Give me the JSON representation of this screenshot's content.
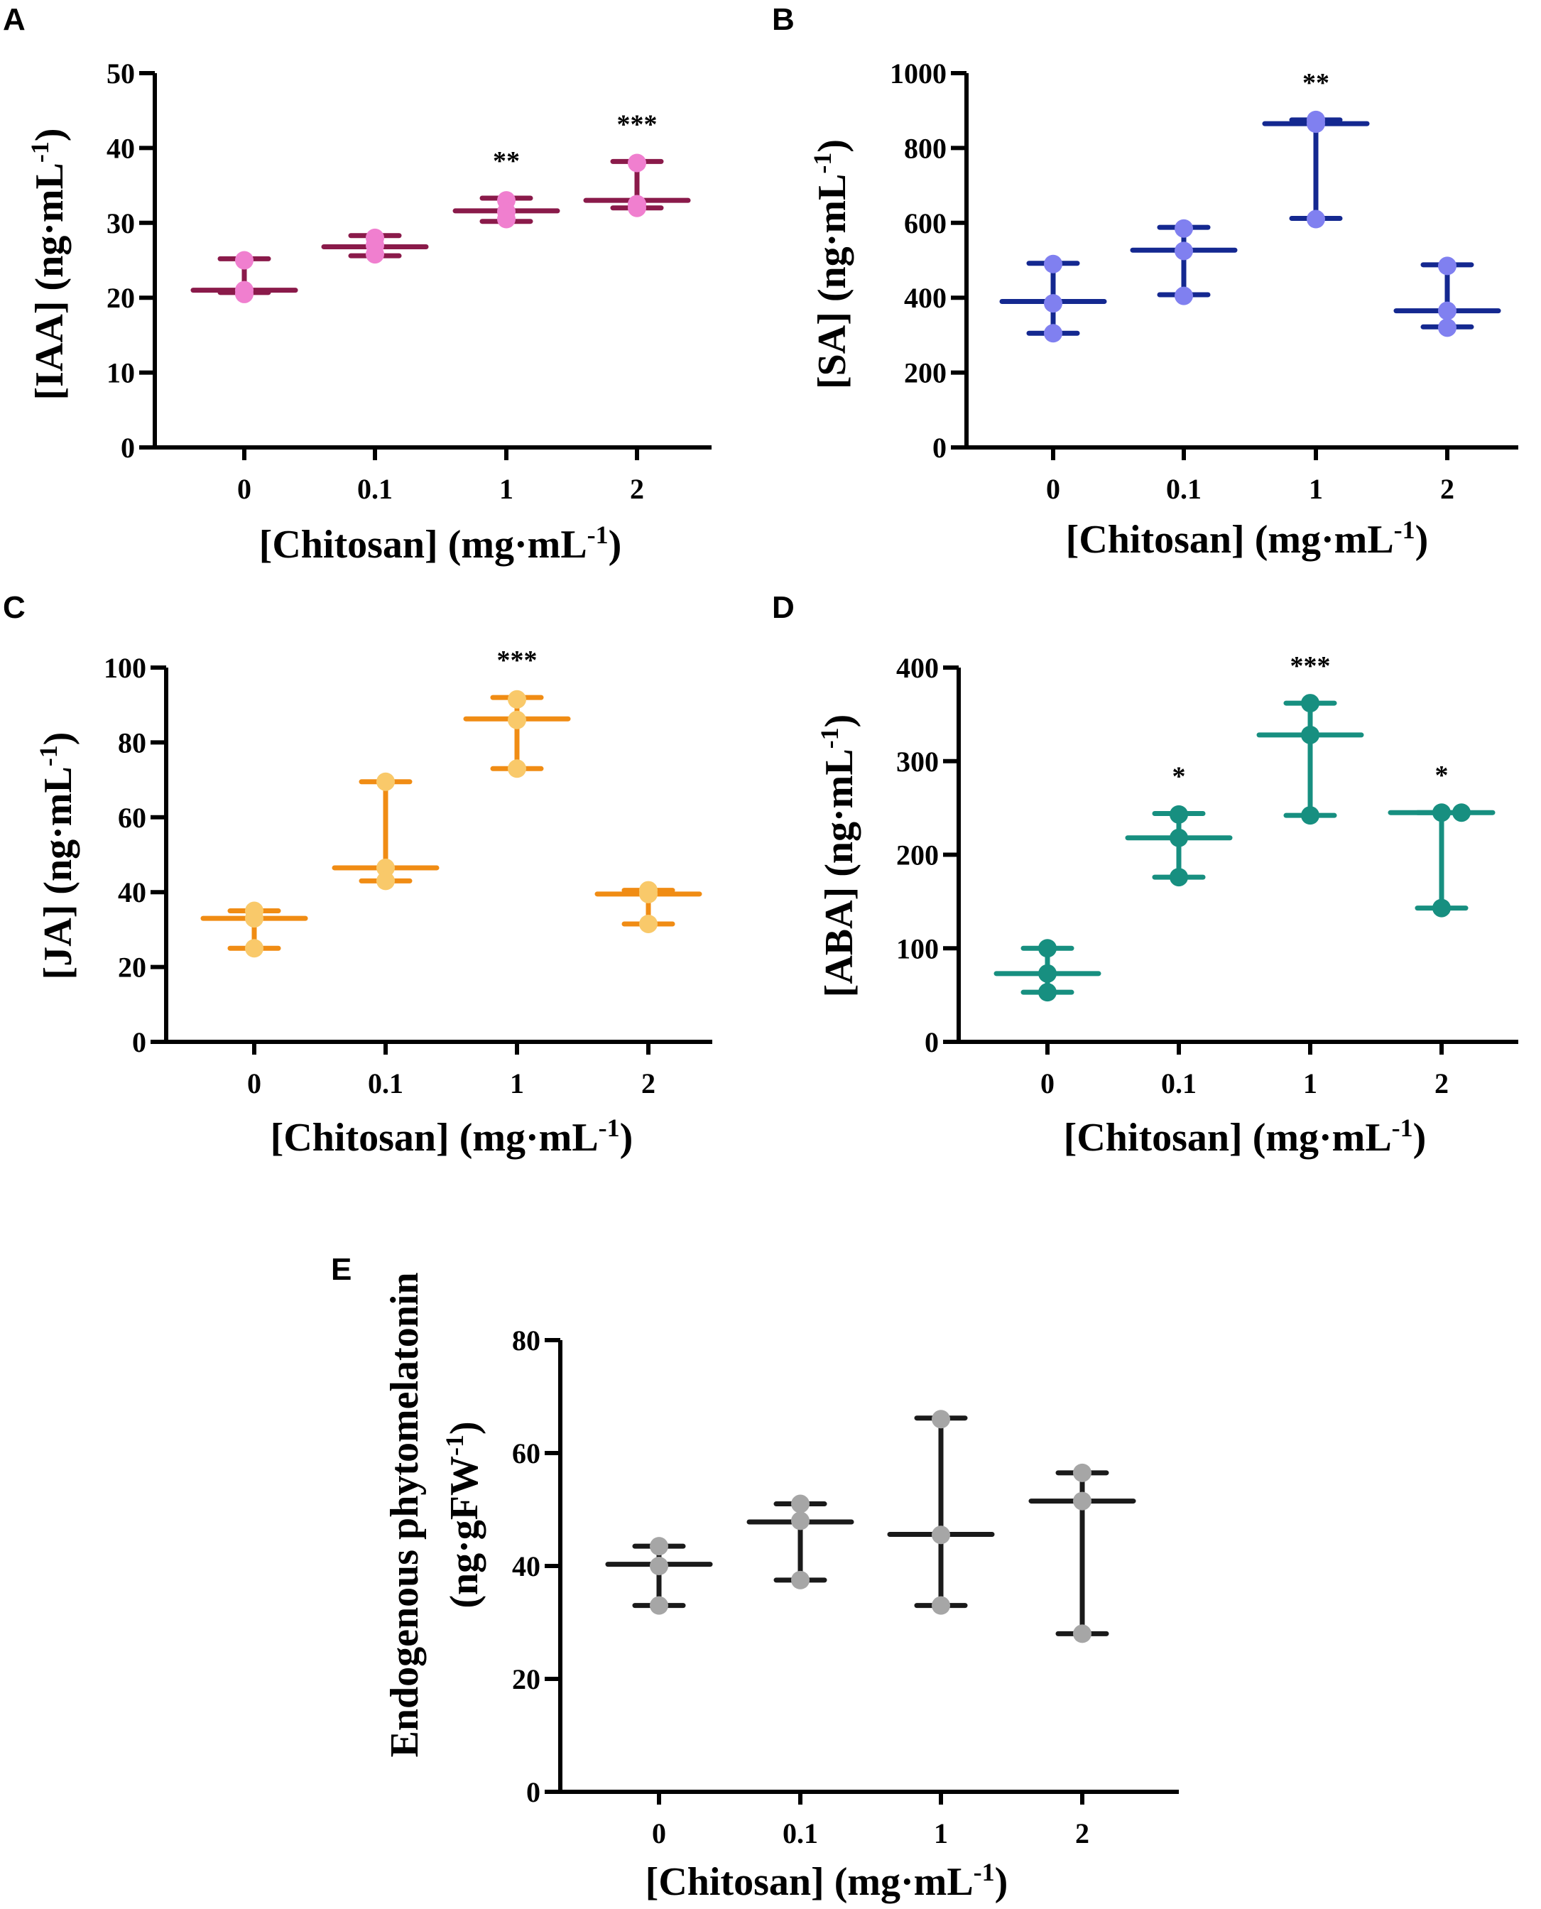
{
  "chart_data": [
    {
      "panel": "A",
      "type": "scatter",
      "title": "",
      "ylabel": "[IAA] (ng·mL",
      "ylabel_sup": "-1",
      "xlabel": "[Chitosan] (mg·mL",
      "xlabel_sup": "-1",
      "categories": [
        "0",
        "0.1",
        "1",
        "2"
      ],
      "ylim": [
        0,
        50
      ],
      "yticks": [
        "0",
        "10",
        "20",
        "30",
        "40",
        "50"
      ],
      "ytick_values": [
        0,
        10,
        20,
        30,
        40,
        50
      ],
      "points": [
        [
          25,
          21,
          20.5
        ],
        [
          28,
          27,
          25.8
        ],
        [
          33,
          31.5,
          30.5
        ],
        [
          38,
          32.5,
          32
        ]
      ],
      "median": [
        21,
        26.8,
        31.6,
        33
      ],
      "range": [
        [
          20.7,
          25.2
        ],
        [
          25.6,
          28.3
        ],
        [
          30.2,
          33.3
        ],
        [
          32,
          38.2
        ]
      ],
      "significance": [
        "",
        "",
        "**",
        "***"
      ],
      "point_color": "#f07fcf",
      "line_color": "#8a1a4a"
    },
    {
      "panel": "B",
      "type": "scatter",
      "title": "",
      "ylabel": "[SA] (ng·mL",
      "ylabel_sup": "-1",
      "xlabel": "[Chitosan] (mg·mL",
      "xlabel_sup": "-1",
      "categories": [
        "0",
        "0.1",
        "1",
        "2"
      ],
      "ylim": [
        0,
        1000
      ],
      "yticks": [
        "0",
        "200",
        "400",
        "600",
        "800",
        "1000"
      ],
      "ytick_values": [
        0,
        200,
        400,
        600,
        800,
        1000
      ],
      "points": [
        [
          490,
          385,
          305
        ],
        [
          585,
          525,
          405
        ],
        [
          875,
          865,
          610
        ],
        [
          485,
          365,
          320
        ]
      ],
      "median": [
        390,
        527,
        865,
        365
      ],
      "range": [
        [
          305,
          492
        ],
        [
          408,
          588
        ],
        [
          612,
          875
        ],
        [
          322,
          488
        ]
      ],
      "significance": [
        "",
        "",
        "**",
        ""
      ],
      "point_color": "#8080f0",
      "line_color": "#142890"
    },
    {
      "panel": "C",
      "type": "scatter",
      "title": "",
      "ylabel": "[JA] (ng·mL",
      "ylabel_sup": "-1",
      "xlabel": "[Chitosan] (mg·mL",
      "xlabel_sup": "-1",
      "categories": [
        "0",
        "0.1",
        "1",
        "2"
      ],
      "ylim": [
        0,
        100
      ],
      "yticks": [
        "0",
        "20",
        "40",
        "60",
        "80",
        "100"
      ],
      "ytick_values": [
        0,
        20,
        40,
        60,
        80,
        100
      ],
      "points": [
        [
          35,
          33,
          25
        ],
        [
          69.5,
          46.5,
          43
        ],
        [
          91.5,
          86,
          73
        ],
        [
          40.5,
          39.5,
          31.5
        ]
      ],
      "median": [
        33,
        46.5,
        86.3,
        39.5
      ],
      "range": [
        [
          25,
          35
        ],
        [
          43,
          69.5
        ],
        [
          73,
          92
        ],
        [
          31.5,
          40.5
        ]
      ],
      "significance": [
        "",
        "",
        "***",
        ""
      ],
      "point_color": "#f9c96a",
      "line_color": "#f08c14"
    },
    {
      "panel": "D",
      "type": "scatter",
      "title": "",
      "ylabel": "[ABA] (ng·mL",
      "ylabel_sup": "-1",
      "xlabel": "[Chitosan] (mg·mL",
      "xlabel_sup": "-1",
      "categories": [
        "0",
        "0.1",
        "1",
        "2"
      ],
      "ylim": [
        0,
        400
      ],
      "yticks": [
        "0",
        "100",
        "200",
        "300",
        "400"
      ],
      "ytick_values": [
        0,
        100,
        200,
        300,
        400
      ],
      "points": [
        [
          100,
          73,
          53
        ],
        [
          243,
          218,
          176
        ],
        [
          362,
          328,
          242
        ],
        [
          245,
          245,
          143
        ]
      ],
      "median": [
        73,
        218,
        328,
        245
      ],
      "range": [
        [
          53,
          100
        ],
        [
          176,
          244
        ],
        [
          242,
          362
        ],
        [
          143,
          245
        ]
      ],
      "significance": [
        "",
        "*",
        "***",
        "*"
      ],
      "point_color": "#178f80",
      "line_color": "#178f80"
    },
    {
      "panel": "E",
      "type": "scatter",
      "title": "",
      "ylabel_line1": "Endogenous phytomelatonin",
      "ylabel": "(ng·gFW",
      "ylabel_sup": "-1",
      "xlabel": "[Chitosan] (mg·mL",
      "xlabel_sup": "-1",
      "categories": [
        "0",
        "0.1",
        "1",
        "2"
      ],
      "ylim": [
        0,
        80
      ],
      "yticks": [
        "0",
        "20",
        "40",
        "60",
        "80"
      ],
      "ytick_values": [
        0,
        20,
        40,
        60,
        80
      ],
      "points": [
        [
          43.5,
          40,
          33
        ],
        [
          51,
          48,
          37.5
        ],
        [
          66,
          45.5,
          33
        ],
        [
          56.5,
          51.5,
          28
        ]
      ],
      "median": [
        40.3,
        47.8,
        45.6,
        51.5
      ],
      "range": [
        [
          33,
          43.5
        ],
        [
          37.5,
          51
        ],
        [
          33,
          66.2
        ],
        [
          28,
          56.5
        ]
      ],
      "significance": [
        "",
        "",
        "",
        ""
      ],
      "point_color": "#a6a6a6",
      "line_color": "#1a1a1a"
    }
  ]
}
